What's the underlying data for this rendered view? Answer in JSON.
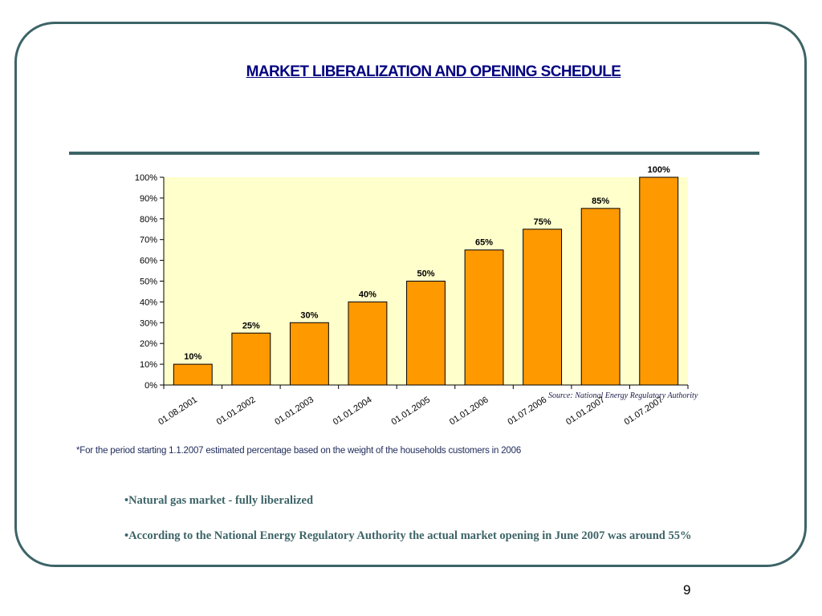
{
  "slide": {
    "title": "MARKET LIBERALIZATION AND OPENING SCHEDULE",
    "source": "Source: National Energy Regulatory Authority",
    "footnote": "*For the period starting 1.1.2007 estimated percentage based on the weight of the households customers in 2006",
    "bullets": [
      "•Natural gas market - fully liberalized",
      "•According to the National Energy Regulatory Authority the actual market opening in June 2007 was around 55%"
    ],
    "page_number": "9"
  },
  "colors": {
    "frame": "#3d6467",
    "title": "#000080",
    "bar_fill": "#ff9900",
    "plot_bg": "#ffffcc"
  },
  "chart_data": {
    "type": "bar",
    "categories": [
      "01.08.2001",
      "01.01.2002",
      "01.01.2003",
      "01.01.2004",
      "01.01.2005",
      "01.01.2006",
      "01.07.2006",
      "01.01.2007",
      "01.07.2007"
    ],
    "values": [
      10,
      25,
      30,
      40,
      50,
      65,
      75,
      85,
      100
    ],
    "value_labels": [
      "10%",
      "25%",
      "30%",
      "40%",
      "50%",
      "65%",
      "75%",
      "85%",
      "100%"
    ],
    "yticks": [
      "0%",
      "10%",
      "20%",
      "30%",
      "40%",
      "50%",
      "60%",
      "70%",
      "80%",
      "90%",
      "100%"
    ],
    "ylim": [
      0,
      100
    ],
    "title": "",
    "xlabel": "",
    "ylabel": "",
    "grid": false,
    "legend": "none"
  }
}
